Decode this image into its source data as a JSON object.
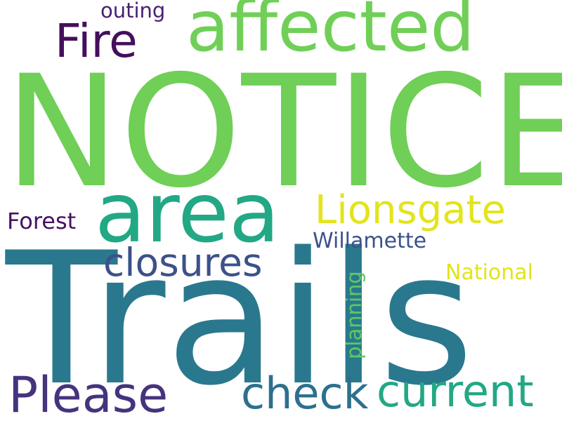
{
  "word_cloud": {
    "words": [
      {
        "text": "NOTICE",
        "color": "#6fcf57"
      },
      {
        "text": "Trails",
        "color": "#2a788e"
      },
      {
        "text": "affected",
        "color": "#70cf57"
      },
      {
        "text": "area",
        "color": "#22a884"
      },
      {
        "text": "Fire",
        "color": "#440f5b"
      },
      {
        "text": "outing",
        "color": "#482173"
      },
      {
        "text": "Lionsgate",
        "color": "#e3e41c"
      },
      {
        "text": "Forest",
        "color": "#471164"
      },
      {
        "text": "Willamette",
        "color": "#3b528b"
      },
      {
        "text": "closures",
        "color": "#3b518b"
      },
      {
        "text": "National",
        "color": "#e2e418"
      },
      {
        "text": "planning",
        "color": "#5ec962"
      },
      {
        "text": "Please",
        "color": "#46337e"
      },
      {
        "text": "check",
        "color": "#2d708e"
      },
      {
        "text": "current",
        "color": "#22a884"
      }
    ]
  }
}
